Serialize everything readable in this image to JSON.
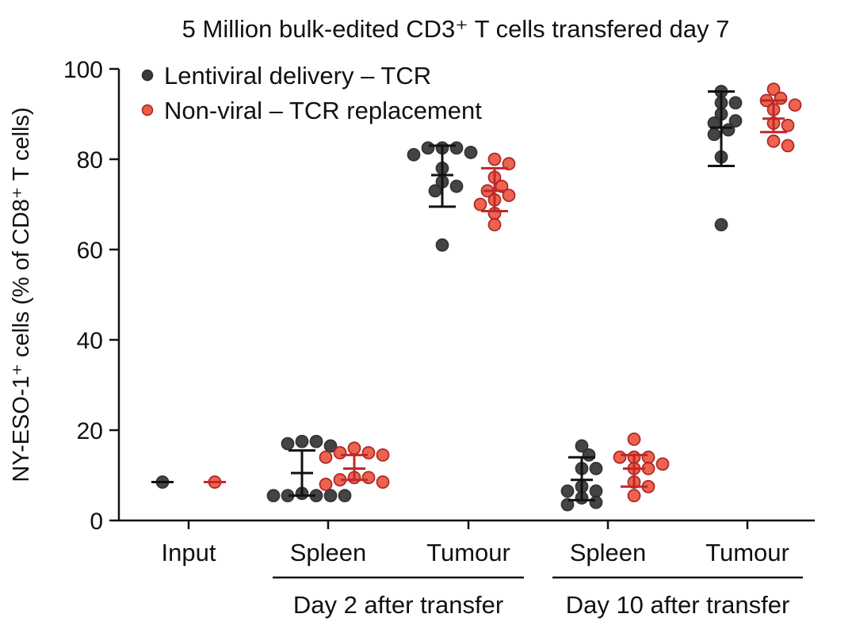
{
  "chart_data": {
    "type": "scatter",
    "title": "5 Million bulk-edited CD3⁺ T cells transfered day 7",
    "ylabel": "NY-ESO-1⁺ cells (% of CD8⁺ T cells)",
    "xlabel": "",
    "ylim": [
      0,
      100
    ],
    "yticks": [
      0,
      20,
      40,
      60,
      80,
      100
    ],
    "grid": false,
    "legend_position": "top-left",
    "categories": [
      "Input",
      "Spleen",
      "Tumour",
      "Spleen",
      "Tumour"
    ],
    "category_groups": [
      {
        "label": "Day 2 after transfer",
        "categories": [
          1,
          2
        ]
      },
      {
        "label": "Day 10 after transfer",
        "categories": [
          3,
          4
        ]
      }
    ],
    "series": [
      {
        "name": "Lentiviral delivery – TCR",
        "color": "#3a3a3c",
        "edge": "#2a2a2a",
        "errorbar_color": "#111111",
        "groups": [
          {
            "values": [
              8.5
            ],
            "mean": 8.5,
            "err_low": 8.5,
            "err_high": 8.5
          },
          {
            "values": [
              17.5,
              17.5,
              17.0,
              16.5,
              6.0,
              5.5,
              5.5,
              5.5,
              5.5,
              5.5
            ],
            "mean": 10.5,
            "err_low": 5.5,
            "err_high": 15.5
          },
          {
            "values": [
              82.5,
              82.5,
              82.5,
              81.5,
              81.0,
              78.0,
              75.0,
              74.0,
              73.0,
              61.0
            ],
            "mean": 76.5,
            "err_low": 69.5,
            "err_high": 83.0
          },
          {
            "values": [
              16.5,
              14.5,
              11.5,
              11.5,
              7.5,
              6.5,
              6.5,
              5.0,
              4.0,
              3.5
            ],
            "mean": 9.0,
            "err_low": 4.5,
            "err_high": 14.0
          },
          {
            "values": [
              95.0,
              92.5,
              92.5,
              90.0,
              88.5,
              88.0,
              86.5,
              85.5,
              80.5,
              65.5
            ],
            "mean": 87.0,
            "err_low": 78.5,
            "err_high": 95.0
          }
        ]
      },
      {
        "name": "Non-viral – TCR replacement",
        "color": "#ee5b45",
        "edge": "#a81e1e",
        "errorbar_color": "#c0282a",
        "groups": [
          {
            "values": [
              8.5
            ],
            "mean": 8.5,
            "err_low": 8.5,
            "err_high": 8.5
          },
          {
            "values": [
              16.0,
              15.0,
              15.0,
              14.5,
              14.0,
              9.5,
              9.5,
              9.0,
              8.5,
              8.0
            ],
            "mean": 11.5,
            "err_low": 9.0,
            "err_high": 14.5
          },
          {
            "values": [
              80.0,
              79.0,
              76.0,
              74.0,
              73.0,
              72.0,
              71.0,
              70.0,
              68.0,
              65.5
            ],
            "mean": 73.0,
            "err_low": 68.5,
            "err_high": 78.0
          },
          {
            "values": [
              18.0,
              14.0,
              14.0,
              14.0,
              12.5,
              11.5,
              11.5,
              8.5,
              7.5,
              5.5
            ],
            "mean": 11.5,
            "err_low": 7.5,
            "err_high": 14.5
          },
          {
            "values": [
              95.5,
              93.5,
              93.0,
              92.0,
              91.0,
              88.0,
              87.5,
              84.0,
              83.0
            ],
            "mean": 89.0,
            "err_low": 86.0,
            "err_high": 93.0
          }
        ]
      }
    ]
  }
}
